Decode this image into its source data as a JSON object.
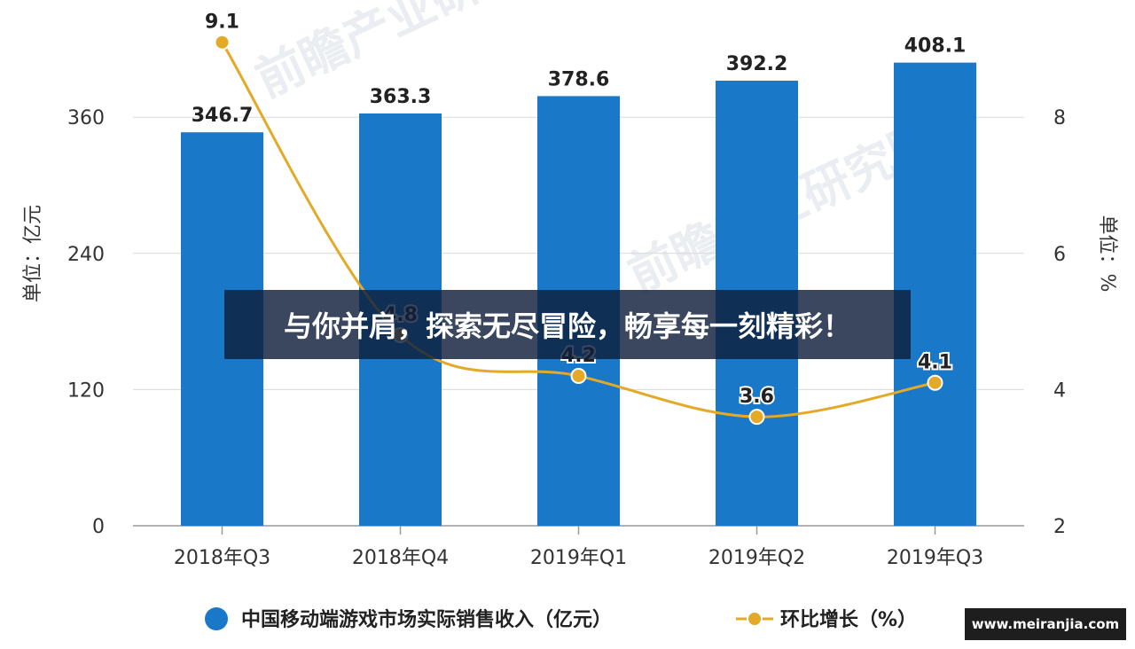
{
  "chart_data": {
    "type": "bar",
    "categories": [
      "2018年Q3",
      "2018年Q4",
      "2019年Q1",
      "2019年Q2",
      "2019年Q3"
    ],
    "series": [
      {
        "name": "中国移动端游戏市场实际销售收入（亿元）",
        "type": "bar",
        "axis": "left",
        "values": [
          346.7,
          363.3,
          378.6,
          392.2,
          408.1
        ],
        "color": "#1a78c8"
      },
      {
        "name": "环比增长（%）",
        "type": "line",
        "axis": "right",
        "values": [
          9.1,
          4.8,
          4.2,
          3.6,
          4.1
        ],
        "color": "#e3a927"
      }
    ],
    "ylabel": "单位：亿元",
    "y2label": "单位：%",
    "ylim": [
      0,
      450
    ],
    "yticks": [
      0,
      120,
      240,
      360
    ],
    "y2lim": [
      2,
      9.5
    ],
    "y2ticks": [
      2,
      4,
      6,
      8
    ],
    "grid": true,
    "legend_position": "bottom"
  },
  "watermark": {
    "text_1": "前瞻产业研究院",
    "text_2": "前瞻产业研究院"
  },
  "banner": {
    "text": "与你并肩，探索无尽冒险，畅享每一刻精彩！"
  },
  "site_badge": {
    "text": "www.meiranjia.com"
  }
}
